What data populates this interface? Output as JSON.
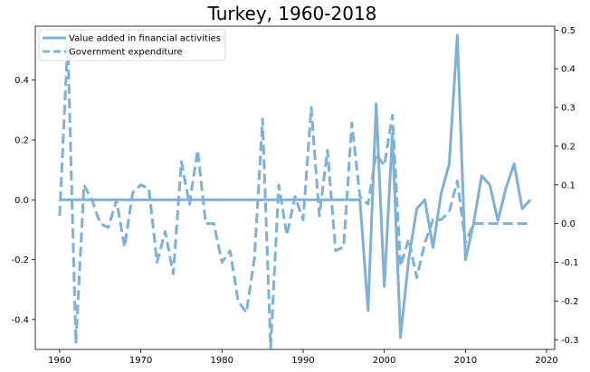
{
  "chart_data": {
    "type": "line",
    "title": "Turkey, 1960-2018",
    "xlabel": "",
    "ylabel_left": "",
    "ylabel_right": "",
    "xlim": [
      1957,
      2021
    ],
    "ylim_left": [
      -0.5,
      0.58
    ],
    "ylim_right": [
      -0.325,
      0.51
    ],
    "x_ticks": [
      1960,
      1970,
      1980,
      1990,
      2000,
      2010,
      2020
    ],
    "y_left_ticks": [
      -0.4,
      -0.2,
      0.0,
      0.2,
      0.4
    ],
    "y_right_ticks": [
      -0.3,
      -0.2,
      -0.1,
      0.0,
      0.1,
      0.2,
      0.3,
      0.4,
      0.5
    ],
    "tick_label_format": "fixed1",
    "grid": false,
    "legend_position": "top-left",
    "color": "#7fb0d6",
    "series": [
      {
        "name": "Value added in financial activities",
        "axis": "left",
        "style": "solid",
        "x": [
          1960,
          1961,
          1962,
          1963,
          1964,
          1965,
          1966,
          1967,
          1968,
          1969,
          1970,
          1971,
          1972,
          1973,
          1974,
          1975,
          1976,
          1977,
          1978,
          1979,
          1980,
          1981,
          1982,
          1983,
          1984,
          1985,
          1986,
          1987,
          1988,
          1989,
          1990,
          1991,
          1992,
          1993,
          1994,
          1995,
          1996,
          1997,
          1998,
          1999,
          2000,
          2001,
          2002,
          2003,
          2004,
          2005,
          2006,
          2007,
          2008,
          2009,
          2010,
          2011,
          2012,
          2013,
          2014,
          2015,
          2016,
          2017,
          2018
        ],
        "values": [
          0,
          0,
          0,
          0,
          0,
          0,
          0,
          0,
          0,
          0,
          0,
          0,
          0,
          0,
          0,
          0,
          0,
          0,
          0,
          0,
          0,
          0,
          0,
          0,
          0,
          0,
          0,
          0,
          0,
          0,
          0,
          0,
          0,
          0,
          0,
          0,
          0,
          0,
          -0.37,
          0.32,
          -0.29,
          0.22,
          -0.46,
          -0.2,
          -0.03,
          0.0,
          -0.16,
          0.02,
          0.12,
          0.55,
          -0.2,
          -0.08,
          0.08,
          0.05,
          -0.07,
          0.04,
          0.12,
          -0.03,
          0.0
        ]
      },
      {
        "name": "Government expenditure",
        "axis": "right",
        "style": "dashed",
        "x": [
          1960,
          1961,
          1962,
          1963,
          1964,
          1965,
          1966,
          1967,
          1968,
          1969,
          1970,
          1971,
          1972,
          1973,
          1974,
          1975,
          1976,
          1977,
          1978,
          1979,
          1980,
          1981,
          1982,
          1983,
          1984,
          1985,
          1986,
          1987,
          1988,
          1989,
          1990,
          1991,
          1992,
          1993,
          1994,
          1995,
          1996,
          1997,
          1998,
          1999,
          2000,
          2001,
          2002,
          2003,
          2004,
          2005,
          2006,
          2007,
          2008,
          2009,
          2010,
          2011,
          2012,
          2013,
          2014,
          2015,
          2016,
          2017,
          2018
        ],
        "values": [
          0.02,
          0.47,
          -0.31,
          0.1,
          0.06,
          0.0,
          -0.01,
          0.06,
          -0.06,
          0.08,
          0.1,
          0.09,
          -0.1,
          -0.02,
          -0.13,
          0.16,
          0.05,
          0.19,
          0.0,
          0.0,
          -0.1,
          -0.07,
          -0.2,
          -0.23,
          -0.09,
          0.27,
          -0.32,
          0.1,
          -0.03,
          0.07,
          0.01,
          0.3,
          0.02,
          0.19,
          -0.07,
          -0.06,
          0.26,
          0.07,
          0.05,
          0.18,
          0.15,
          0.28,
          -0.11,
          -0.04,
          -0.14,
          -0.05,
          0.01,
          0.01,
          0.03,
          0.11,
          -0.05,
          0.0,
          0.0,
          0.0,
          0.0,
          0.0,
          0.0,
          0.0,
          0.0
        ]
      }
    ]
  }
}
